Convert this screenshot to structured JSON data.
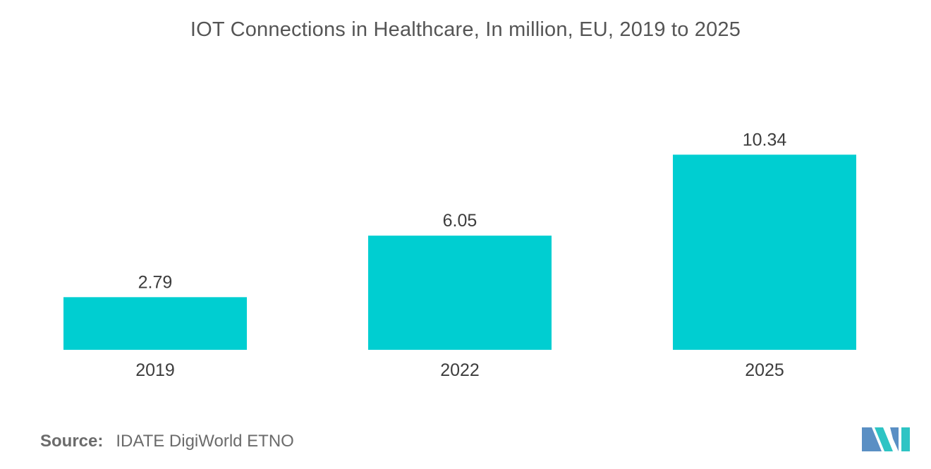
{
  "chart_data": {
    "type": "bar",
    "title": "IOT Connections in Healthcare, In million, EU, 2019 to 2025",
    "categories": [
      "2019",
      "2022",
      "2025"
    ],
    "values": [
      2.79,
      6.05,
      10.34
    ],
    "value_labels": [
      "2.79",
      "6.05",
      "10.34"
    ],
    "xlabel": "",
    "ylabel": "",
    "ylim": [
      0,
      14.5
    ],
    "grid": false,
    "legend": "none",
    "bar_color": "#00CED1"
  },
  "source": {
    "label": "Source:",
    "text": "IDATE DigiWorld ETNO"
  },
  "logo": {
    "icon": "mordor-intelligence-logo-icon",
    "colors": [
      "#5A8FC4",
      "#2EC4C4"
    ]
  }
}
